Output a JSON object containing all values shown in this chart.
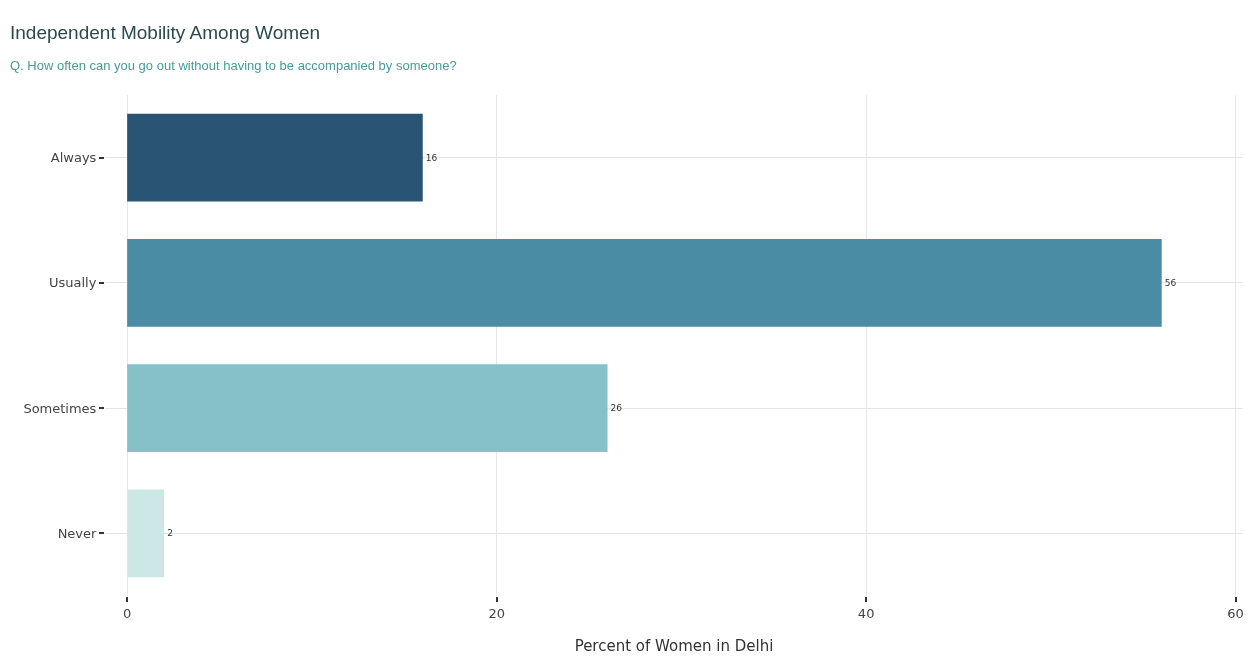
{
  "chart_data": {
    "type": "bar",
    "orientation": "horizontal",
    "title": "Independent Mobility Among Women",
    "subtitle": "Q. How often can you go out without having to be accompanied by someone?",
    "xlabel": "Percent of Women in Delhi",
    "categories": [
      "Always",
      "Usually",
      "Sometimes",
      "Never"
    ],
    "values": [
      16,
      56,
      26,
      2
    ],
    "colors": [
      "#2a5473",
      "#4a8ca3",
      "#87c1c8",
      "#cce8e6"
    ],
    "xlim": [
      -1.2,
      60.4
    ],
    "xticks": [
      0,
      20,
      40,
      60
    ],
    "grid": true,
    "data_labels": true
  }
}
